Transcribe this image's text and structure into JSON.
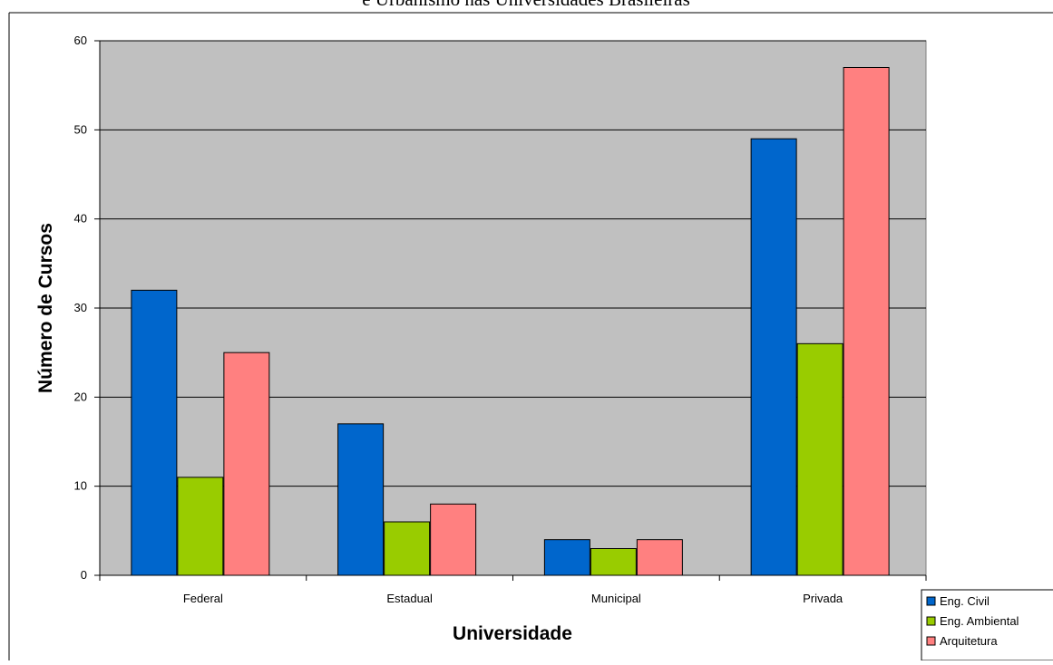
{
  "chart_data": {
    "type": "bar",
    "title": "e Urbanismo nas Universidades Brasileiras",
    "xlabel": "Universidade",
    "ylabel": "Número de Cursos",
    "categories": [
      "Federal",
      "Estadual",
      "Municipal",
      "Privada"
    ],
    "series": [
      {
        "name": "Eng. Civil",
        "values": [
          32,
          17,
          4,
          49
        ],
        "color": "#0066cc"
      },
      {
        "name": "Eng. Ambiental",
        "values": [
          11,
          6,
          3,
          26
        ],
        "color": "#99cc00"
      },
      {
        "name": "Arquitetura",
        "values": [
          25,
          8,
          4,
          57
        ],
        "color": "#ff8080"
      }
    ],
    "ylim": [
      0,
      60
    ],
    "yticks": [
      0,
      10,
      20,
      30,
      40,
      50,
      60
    ],
    "grid": true,
    "plot_background": "#c0c0c0",
    "legend_position": "bottom-right"
  }
}
